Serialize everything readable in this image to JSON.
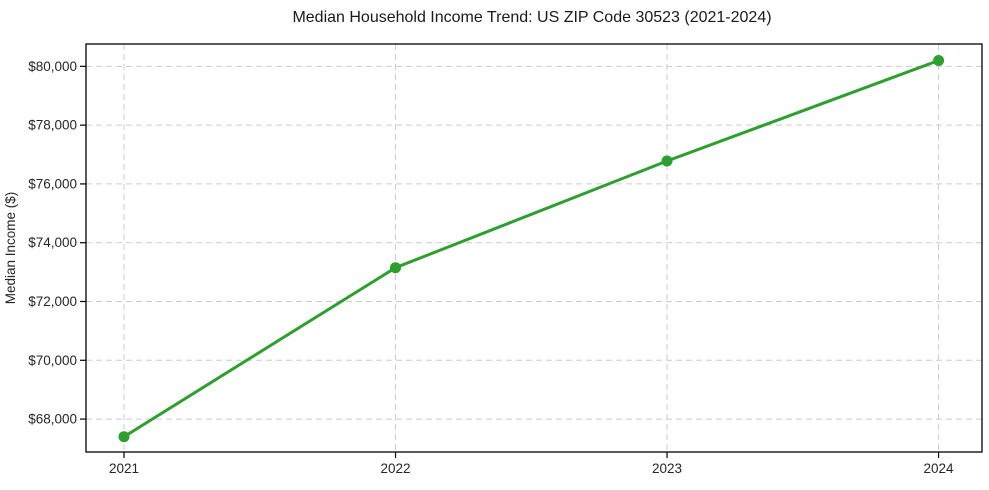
{
  "window": {
    "title": "Median Household Income Trend: US ZIP Code 30523 (2021-2024)"
  },
  "chart_data": {
    "type": "line",
    "title": "Median Household Income Trend: US ZIP Code 30523 (2021-2024)",
    "xlabel": "",
    "ylabel": "Median Income ($)",
    "x": [
      2021,
      2022,
      2023,
      2024
    ],
    "x_tick_labels": [
      "2021",
      "2022",
      "2023",
      "2024"
    ],
    "series": [
      {
        "name": "Median Household Income",
        "values": [
          67400,
          73150,
          76780,
          80200
        ],
        "color": "#2ca02c",
        "marker": "circle",
        "line_width": 3,
        "marker_radius": 5.5
      }
    ],
    "y_ticks": [
      68000,
      70000,
      72000,
      74000,
      76000,
      78000,
      80000
    ],
    "y_tick_labels": [
      "$68,000",
      "$70,000",
      "$72,000",
      "$74,000",
      "$76,000",
      "$78,000",
      "$80,000"
    ],
    "xlim": [
      2020.86,
      2024.16
    ],
    "ylim": [
      66880,
      80760
    ],
    "grid": "dashed-both",
    "legend": "none",
    "colors": {
      "line": "#2ca02c",
      "grid": "#cccccc",
      "axis": "#000000",
      "text": "#262626",
      "background": "#ffffff"
    }
  }
}
